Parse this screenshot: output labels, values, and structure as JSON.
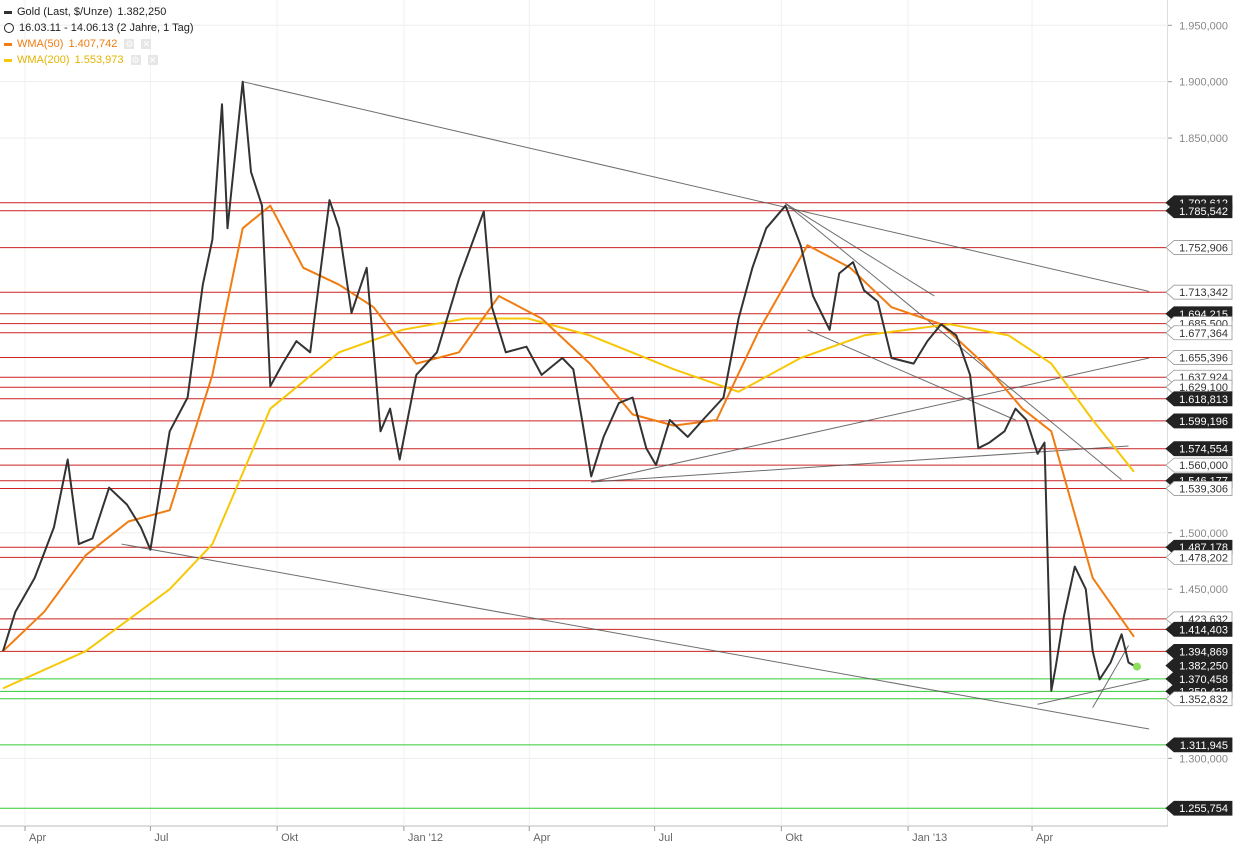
{
  "legend": {
    "main": "Gold (Last, $/Unze)",
    "main_value": "1.382,250",
    "period": "16.03.11 - 14.06.13 (2 Jahre, 1 Tag)",
    "wma50_label": "WMA(50)",
    "wma50_value": "1.407,742",
    "wma200_label": "WMA(200)",
    "wma200_value": "1.553,973"
  },
  "colors": {
    "price": "#333333",
    "wma50": "#f07c12",
    "wma200": "#f7c808",
    "resistance": "#cc2222",
    "support": "#33cc33",
    "trend": "#555555",
    "last_dot": "#8ee05a"
  },
  "chart_data": {
    "type": "line",
    "title": "",
    "xlabel": "",
    "ylabel": "",
    "x_range": [
      "2011-03-16",
      "2013-06-14"
    ],
    "ylim": [
      1240,
      1968
    ],
    "y_ticks": [
      {
        "value": 1300,
        "label": "1.300,000"
      },
      {
        "value": 1450,
        "label": "1.450,000"
      },
      {
        "value": 1500,
        "label": "1.500,000"
      },
      {
        "value": 1850,
        "label": "1.850,000"
      },
      {
        "value": 1900,
        "label": "1.900,000"
      },
      {
        "value": 1950,
        "label": "1.950,000"
      }
    ],
    "x_ticks": [
      {
        "date": "2011-04-01",
        "label": "Apr"
      },
      {
        "date": "2011-07-01",
        "label": "Jul"
      },
      {
        "date": "2011-10-01",
        "label": "Okt"
      },
      {
        "date": "2012-01-01",
        "label": "Jan '12"
      },
      {
        "date": "2012-04-01",
        "label": "Apr"
      },
      {
        "date": "2012-07-01",
        "label": "Jul"
      },
      {
        "date": "2012-10-01",
        "label": "Okt"
      },
      {
        "date": "2013-01-01",
        "label": "Jan '13"
      },
      {
        "date": "2013-04-01",
        "label": "Apr"
      }
    ],
    "series": [
      {
        "name": "Gold (Last, $/Unze)",
        "color": "#333333",
        "points": [
          [
            "2011-03-16",
            1395
          ],
          [
            "2011-03-25",
            1430
          ],
          [
            "2011-04-08",
            1460
          ],
          [
            "2011-04-22",
            1505
          ],
          [
            "2011-05-02",
            1565
          ],
          [
            "2011-05-10",
            1490
          ],
          [
            "2011-05-20",
            1495
          ],
          [
            "2011-06-01",
            1540
          ],
          [
            "2011-06-14",
            1525
          ],
          [
            "2011-06-24",
            1505
          ],
          [
            "2011-07-01",
            1485
          ],
          [
            "2011-07-15",
            1590
          ],
          [
            "2011-07-28",
            1620
          ],
          [
            "2011-08-08",
            1720
          ],
          [
            "2011-08-15",
            1760
          ],
          [
            "2011-08-22",
            1880
          ],
          [
            "2011-08-26",
            1770
          ],
          [
            "2011-09-06",
            1900
          ],
          [
            "2011-09-12",
            1820
          ],
          [
            "2011-09-20",
            1790
          ],
          [
            "2011-09-26",
            1630
          ],
          [
            "2011-10-05",
            1650
          ],
          [
            "2011-10-15",
            1670
          ],
          [
            "2011-10-25",
            1660
          ],
          [
            "2011-11-08",
            1795
          ],
          [
            "2011-11-15",
            1770
          ],
          [
            "2011-11-24",
            1695
          ],
          [
            "2011-12-05",
            1735
          ],
          [
            "2011-12-15",
            1590
          ],
          [
            "2011-12-22",
            1610
          ],
          [
            "2011-12-29",
            1565
          ],
          [
            "2012-01-10",
            1640
          ],
          [
            "2012-01-25",
            1660
          ],
          [
            "2012-02-10",
            1725
          ],
          [
            "2012-02-28",
            1785
          ],
          [
            "2012-03-05",
            1700
          ],
          [
            "2012-03-15",
            1660
          ],
          [
            "2012-03-30",
            1665
          ],
          [
            "2012-04-10",
            1640
          ],
          [
            "2012-04-25",
            1655
          ],
          [
            "2012-05-03",
            1645
          ],
          [
            "2012-05-10",
            1595
          ],
          [
            "2012-05-16",
            1550
          ],
          [
            "2012-05-25",
            1585
          ],
          [
            "2012-06-05",
            1615
          ],
          [
            "2012-06-15",
            1620
          ],
          [
            "2012-06-25",
            1575
          ],
          [
            "2012-07-02",
            1560
          ],
          [
            "2012-07-12",
            1600
          ],
          [
            "2012-07-25",
            1585
          ],
          [
            "2012-08-05",
            1600
          ],
          [
            "2012-08-20",
            1620
          ],
          [
            "2012-08-31",
            1690
          ],
          [
            "2012-09-10",
            1735
          ],
          [
            "2012-09-20",
            1770
          ],
          [
            "2012-10-04",
            1790
          ],
          [
            "2012-10-15",
            1755
          ],
          [
            "2012-10-24",
            1710
          ],
          [
            "2012-11-05",
            1680
          ],
          [
            "2012-11-12",
            1730
          ],
          [
            "2012-11-22",
            1740
          ],
          [
            "2012-11-30",
            1715
          ],
          [
            "2012-12-10",
            1705
          ],
          [
            "2012-12-20",
            1655
          ],
          [
            "2013-01-05",
            1650
          ],
          [
            "2013-01-15",
            1670
          ],
          [
            "2013-01-25",
            1685
          ],
          [
            "2013-02-05",
            1675
          ],
          [
            "2013-02-15",
            1640
          ],
          [
            "2013-02-21",
            1575
          ],
          [
            "2013-03-01",
            1580
          ],
          [
            "2013-03-12",
            1590
          ],
          [
            "2013-03-20",
            1610
          ],
          [
            "2013-03-28",
            1600
          ],
          [
            "2013-04-05",
            1570
          ],
          [
            "2013-04-10",
            1580
          ],
          [
            "2013-04-15",
            1360
          ],
          [
            "2013-04-18",
            1380
          ],
          [
            "2013-04-24",
            1425
          ],
          [
            "2013-05-02",
            1470
          ],
          [
            "2013-05-10",
            1450
          ],
          [
            "2013-05-15",
            1395
          ],
          [
            "2013-05-20",
            1370
          ],
          [
            "2013-05-28",
            1385
          ],
          [
            "2013-06-05",
            1410
          ],
          [
            "2013-06-10",
            1385
          ],
          [
            "2013-06-14",
            1382.25
          ]
        ]
      },
      {
        "name": "WMA(50)",
        "color": "#f07c12",
        "points": [
          [
            "2011-03-16",
            1395
          ],
          [
            "2011-04-15",
            1430
          ],
          [
            "2011-05-15",
            1480
          ],
          [
            "2011-06-15",
            1510
          ],
          [
            "2011-07-15",
            1520
          ],
          [
            "2011-08-15",
            1640
          ],
          [
            "2011-09-06",
            1770
          ],
          [
            "2011-09-26",
            1790
          ],
          [
            "2011-10-20",
            1735
          ],
          [
            "2011-11-15",
            1720
          ],
          [
            "2011-12-10",
            1700
          ],
          [
            "2012-01-10",
            1650
          ],
          [
            "2012-02-10",
            1660
          ],
          [
            "2012-03-10",
            1710
          ],
          [
            "2012-04-10",
            1690
          ],
          [
            "2012-05-15",
            1650
          ],
          [
            "2012-06-15",
            1605
          ],
          [
            "2012-07-15",
            1595
          ],
          [
            "2012-08-15",
            1600
          ],
          [
            "2012-09-15",
            1680
          ],
          [
            "2012-10-20",
            1755
          ],
          [
            "2012-11-20",
            1735
          ],
          [
            "2012-12-20",
            1700
          ],
          [
            "2013-01-25",
            1685
          ],
          [
            "2013-02-25",
            1650
          ],
          [
            "2013-03-25",
            1610
          ],
          [
            "2013-04-15",
            1590
          ],
          [
            "2013-05-15",
            1460
          ],
          [
            "2013-06-14",
            1407.742
          ]
        ]
      },
      {
        "name": "WMA(200)",
        "color": "#f7c808",
        "points": [
          [
            "2011-03-16",
            1362
          ],
          [
            "2011-05-15",
            1395
          ],
          [
            "2011-07-15",
            1450
          ],
          [
            "2011-08-15",
            1490
          ],
          [
            "2011-09-26",
            1610
          ],
          [
            "2011-11-15",
            1660
          ],
          [
            "2011-12-31",
            1680
          ],
          [
            "2012-02-15",
            1690
          ],
          [
            "2012-03-31",
            1690
          ],
          [
            "2012-05-15",
            1675
          ],
          [
            "2012-07-15",
            1645
          ],
          [
            "2012-08-31",
            1625
          ],
          [
            "2012-10-15",
            1655
          ],
          [
            "2012-11-30",
            1675
          ],
          [
            "2013-01-31",
            1685
          ],
          [
            "2013-03-15",
            1675
          ],
          [
            "2013-04-15",
            1650
          ],
          [
            "2013-05-15",
            1600
          ],
          [
            "2013-06-14",
            1553.973
          ]
        ]
      }
    ],
    "horizontal_levels": [
      {
        "value": 1792.612,
        "label": "1.792,612",
        "color": "#cc2222"
      },
      {
        "value": 1785.542,
        "label": "1.785,542",
        "color": "#cc2222"
      },
      {
        "value": 1752.906,
        "label": "1.752,906",
        "color": "#cc2222"
      },
      {
        "value": 1713.342,
        "label": "1.713,342",
        "color": "#cc2222"
      },
      {
        "value": 1694.215,
        "label": "1.694,215",
        "color": "#cc2222"
      },
      {
        "value": 1685.5,
        "label": "1.685,500",
        "color": "#cc2222"
      },
      {
        "value": 1677.364,
        "label": "1.677,364",
        "color": "#cc2222"
      },
      {
        "value": 1655.396,
        "label": "1.655,396",
        "color": "#cc2222"
      },
      {
        "value": 1637.924,
        "label": "1.637,924",
        "color": "#cc2222"
      },
      {
        "value": 1629.1,
        "label": "1.629,100",
        "color": "#cc2222"
      },
      {
        "value": 1618.813,
        "label": "1.618,813",
        "color": "#cc2222"
      },
      {
        "value": 1599.196,
        "label": "1.599,196",
        "color": "#cc2222"
      },
      {
        "value": 1574.554,
        "label": "1.574,554",
        "color": "#cc2222"
      },
      {
        "value": 1560.0,
        "label": "1.560,000",
        "color": "#cc2222"
      },
      {
        "value": 1546.177,
        "label": "1.546,177",
        "color": "#cc2222"
      },
      {
        "value": 1539.306,
        "label": "1.539,306",
        "color": "#cc2222"
      },
      {
        "value": 1487.178,
        "label": "1.487,178",
        "color": "#cc2222"
      },
      {
        "value": 1478.202,
        "label": "1.478,202",
        "color": "#cc2222"
      },
      {
        "value": 1423.632,
        "label": "1.423,632",
        "color": "#cc2222"
      },
      {
        "value": 1414.403,
        "label": "1.414,403",
        "color": "#cc2222"
      },
      {
        "value": 1394.869,
        "label": "1.394,869",
        "color": "#cc2222"
      },
      {
        "value": 1370.458,
        "label": "1.370,458",
        "color": "#33cc33"
      },
      {
        "value": 1359.422,
        "label": "1.359,422",
        "color": "#33cc33"
      },
      {
        "value": 1352.832,
        "label": "1.352,832",
        "color": "#33cc33"
      },
      {
        "value": 1311.945,
        "label": "1.311,945",
        "color": "#33cc33"
      },
      {
        "value": 1255.754,
        "label": "1.255,754",
        "color": "#33cc33"
      }
    ],
    "current_value": {
      "value": 1382.25,
      "label": "1.382,250"
    },
    "trend_lines": [
      {
        "from": [
          "2011-09-06",
          1900
        ],
        "to": [
          "2013-06-25",
          1714
        ]
      },
      {
        "from": [
          "2011-06-10",
          1490
        ],
        "to": [
          "2013-06-25",
          1326
        ]
      },
      {
        "from": [
          "2012-05-16",
          1545
        ],
        "to": [
          "2013-06-25",
          1655
        ]
      },
      {
        "from": [
          "2012-05-16",
          1545
        ],
        "to": [
          "2013-06-10",
          1577
        ]
      },
      {
        "from": [
          "2012-10-04",
          1792
        ],
        "to": [
          "2013-01-20",
          1710
        ]
      },
      {
        "from": [
          "2012-10-04",
          1792
        ],
        "to": [
          "2013-06-05",
          1547
        ]
      },
      {
        "from": [
          "2012-10-20",
          1680
        ],
        "to": [
          "2013-03-20",
          1600
        ]
      },
      {
        "from": [
          "2013-04-05",
          1348
        ],
        "to": [
          "2013-06-25",
          1370
        ]
      },
      {
        "from": [
          "2013-05-15",
          1345
        ],
        "to": [
          "2013-06-10",
          1400
        ]
      }
    ]
  }
}
